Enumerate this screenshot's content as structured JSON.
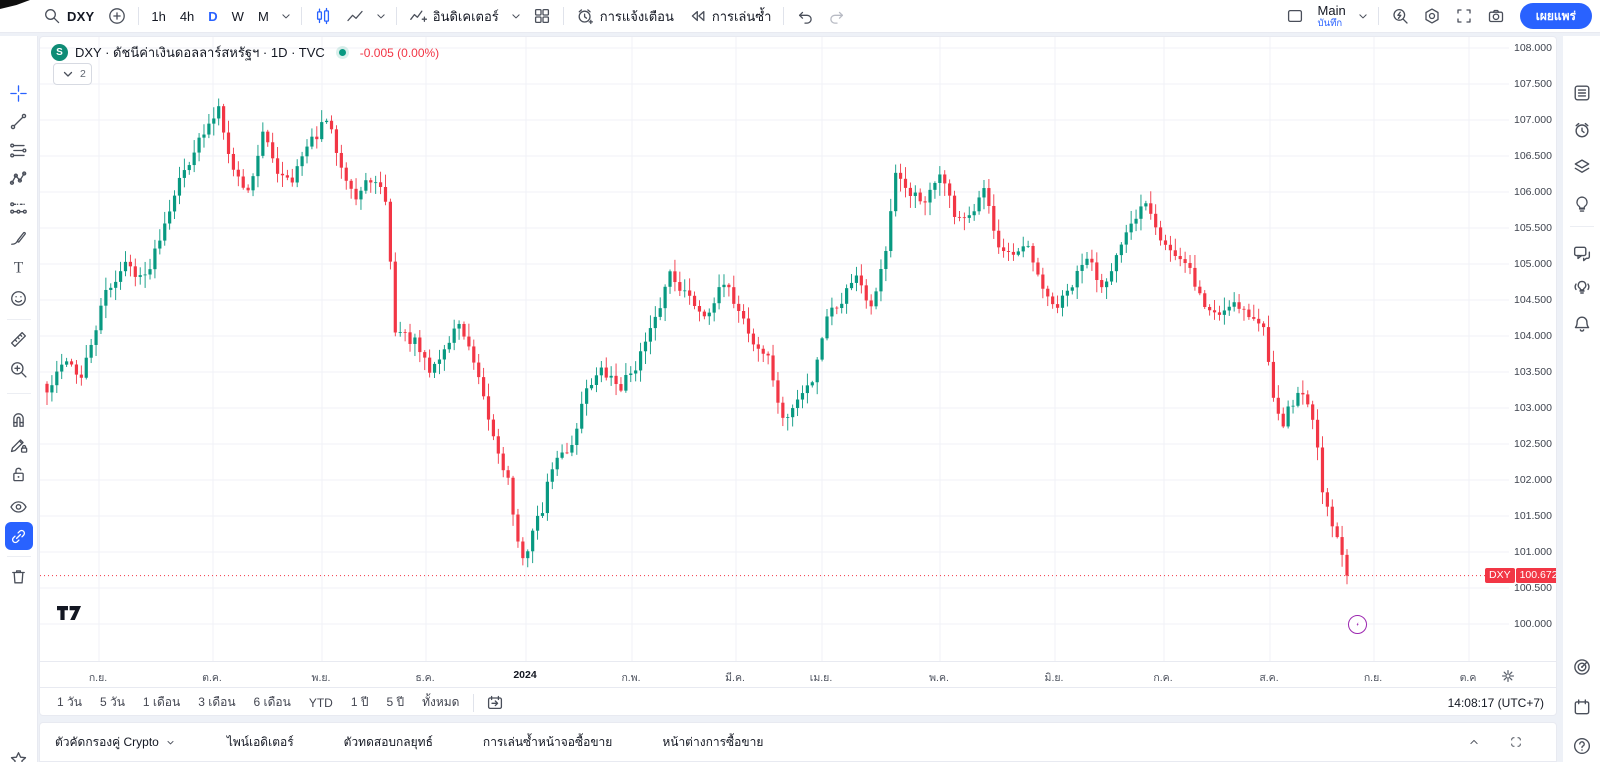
{
  "colors": {
    "accent": "#2962FF",
    "up": "#089981",
    "down": "#F23645",
    "text": "#131722",
    "muted": "#787b86",
    "grid": "#f0f2f7"
  },
  "topbar": {
    "symbol_search": "DXY",
    "timeframes": [
      "1h",
      "4h",
      "D",
      "W",
      "M"
    ],
    "active_timeframe": "D",
    "indicators_label": "อินดิเคเตอร์",
    "alerts_label": "การแจ้งเตือน",
    "replay_label": "การเล่นซ้ำ",
    "layout_name": "Main",
    "save_label": "บันทึก",
    "publish_label": "เผยแพร่"
  },
  "legend": {
    "source_badge": "S",
    "symbol_title": "DXY · ดัชนีค่าเงินดอลลาร์สหรัฐฯ · 1D · TVC",
    "change": "-0.005 (0.00%)",
    "collapsed_count": "2"
  },
  "left_toolbar": {
    "tools": [
      "crosshair",
      "trend-line",
      "fib-retracement",
      "xabcd-pattern",
      "forecast",
      "brush",
      "text",
      "emoji",
      "ruler",
      "zoom-in",
      "magnet",
      "edit-lock",
      "lock-all",
      "hide-all",
      "sync-drawings",
      "remove-all",
      "favorites-star"
    ],
    "active_tool": "sync-drawings",
    "crosshair_color": "#2962FF"
  },
  "right_toolbar": {
    "items": [
      "watchlist",
      "alert-clock",
      "layers",
      "ideas",
      "chat",
      "live-ideas",
      "notifications",
      "target",
      "calendar",
      "help"
    ]
  },
  "price_scale": {
    "ticks": [
      {
        "label": "108.000",
        "price": 108.0
      },
      {
        "label": "107.500",
        "price": 107.5
      },
      {
        "label": "107.000",
        "price": 107.0
      },
      {
        "label": "106.500",
        "price": 106.5
      },
      {
        "label": "106.000",
        "price": 106.0
      },
      {
        "label": "105.500",
        "price": 105.5
      },
      {
        "label": "105.000",
        "price": 105.0
      },
      {
        "label": "104.500",
        "price": 104.5
      },
      {
        "label": "104.000",
        "price": 104.0
      },
      {
        "label": "103.500",
        "price": 103.5
      },
      {
        "label": "103.000",
        "price": 103.0
      },
      {
        "label": "102.500",
        "price": 102.5
      },
      {
        "label": "102.000",
        "price": 102.0
      },
      {
        "label": "101.500",
        "price": 101.5
      },
      {
        "label": "101.000",
        "price": 101.0
      },
      {
        "label": "100.500",
        "price": 100.5
      },
      {
        "label": "100.000",
        "price": 100.0
      }
    ],
    "last": {
      "symbol": "DXY",
      "value": "100.672"
    }
  },
  "time_axis": {
    "labels": [
      {
        "text": "ก.ย.",
        "x": 97
      },
      {
        "text": "ต.ค.",
        "x": 211
      },
      {
        "text": "พ.ย.",
        "x": 320
      },
      {
        "text": "ธ.ค.",
        "x": 424
      },
      {
        "text": "2024",
        "x": 524,
        "bold": true
      },
      {
        "text": "ก.พ.",
        "x": 630
      },
      {
        "text": "มี.ค.",
        "x": 734
      },
      {
        "text": "เม.ย.",
        "x": 820
      },
      {
        "text": "พ.ค.",
        "x": 938
      },
      {
        "text": "มิ.ย.",
        "x": 1053
      },
      {
        "text": "ก.ค.",
        "x": 1162
      },
      {
        "text": "ส.ค.",
        "x": 1268
      },
      {
        "text": "ก.ย.",
        "x": 1372
      },
      {
        "text": "ต.ค",
        "x": 1467
      }
    ]
  },
  "bottom_toolbar": {
    "ranges": [
      "1 วัน",
      "5 วัน",
      "1 เดือน",
      "3 เดือน",
      "6 เดือน",
      "YTD",
      "1 ปี",
      "5 ปี",
      "ทั้งหมด"
    ],
    "clock": "14:08:17 (UTC+7)"
  },
  "bottom_tabs": {
    "tabs": [
      {
        "label": "ตัวคัดกรองคู่ Crypto",
        "chevron": true
      },
      {
        "label": "ไพน์เอดิเตอร์"
      },
      {
        "label": "ตัวทดสอบกลยุทธ์"
      },
      {
        "label": "การเล่นซ้ำหน้าจอซื้อขาย"
      },
      {
        "label": "หน้าต่างการซื้อขาย"
      }
    ]
  },
  "chart_data": {
    "type": "candlestick",
    "symbol": "DXY",
    "description": "ดัชนีค่าเงินดอลลาร์สหรัฐฯ",
    "exchange": "TVC",
    "timeframe": "1D",
    "title": "DXY · ดัชนีค่าเงินดอลลาร์สหรัฐฯ · 1D · TVC",
    "grid": true,
    "ylim": [
      99.5,
      108.15
    ],
    "price_tick_step": 0.5,
    "x_months": [
      "ก.ย.",
      "ต.ค.",
      "พ.ย.",
      "ธ.ค.",
      "2024",
      "ก.พ.",
      "มี.ค.",
      "เม.ย.",
      "พ.ค.",
      "มิ.ย.",
      "ก.ค.",
      "ส.ค.",
      "ก.ย.",
      "ต.ค"
    ],
    "up_color": "#089981",
    "down_color": "#F23645",
    "last_price": 100.672,
    "change": "-0.005",
    "change_pct": "0.00%",
    "close_keypoints": [
      [
        0,
        103.2
      ],
      [
        4,
        103.7
      ],
      [
        7,
        103.4
      ],
      [
        12,
        104.6
      ],
      [
        16,
        105.0
      ],
      [
        20,
        104.8
      ],
      [
        26,
        106.0
      ],
      [
        30,
        106.6
      ],
      [
        33,
        106.9
      ],
      [
        35,
        107.2
      ],
      [
        38,
        106.3
      ],
      [
        41,
        106.0
      ],
      [
        44,
        106.8
      ],
      [
        47,
        106.3
      ],
      [
        50,
        106.2
      ],
      [
        53,
        106.6
      ],
      [
        57,
        107.0
      ],
      [
        60,
        106.4
      ],
      [
        63,
        105.9
      ],
      [
        66,
        106.2
      ],
      [
        69,
        105.9
      ],
      [
        71,
        104.1
      ],
      [
        75,
        103.9
      ],
      [
        78,
        103.5
      ],
      [
        81,
        103.8
      ],
      [
        84,
        104.2
      ],
      [
        87,
        103.6
      ],
      [
        91,
        102.6
      ],
      [
        94,
        102.0
      ],
      [
        96,
        101.1
      ],
      [
        97,
        100.85
      ],
      [
        99,
        101.3
      ],
      [
        101,
        101.6
      ],
      [
        103,
        102.2
      ],
      [
        107,
        102.5
      ],
      [
        110,
        103.3
      ],
      [
        113,
        103.5
      ],
      [
        117,
        103.3
      ],
      [
        120,
        103.6
      ],
      [
        124,
        104.2
      ],
      [
        127,
        104.9
      ],
      [
        130,
        104.6
      ],
      [
        134,
        104.3
      ],
      [
        138,
        104.7
      ],
      [
        141,
        104.4
      ],
      [
        144,
        103.9
      ],
      [
        147,
        103.7
      ],
      [
        150,
        102.8
      ],
      [
        153,
        103.1
      ],
      [
        156,
        103.4
      ],
      [
        159,
        104.3
      ],
      [
        162,
        104.5
      ],
      [
        165,
        104.9
      ],
      [
        168,
        104.4
      ],
      [
        171,
        105.2
      ],
      [
        173,
        106.2
      ],
      [
        176,
        106.0
      ],
      [
        179,
        105.8
      ],
      [
        182,
        106.3
      ],
      [
        185,
        105.7
      ],
      [
        188,
        105.6
      ],
      [
        191,
        106.0
      ],
      [
        194,
        105.3
      ],
      [
        197,
        105.1
      ],
      [
        200,
        105.2
      ],
      [
        203,
        104.6
      ],
      [
        206,
        104.4
      ],
      [
        209,
        104.7
      ],
      [
        212,
        105.1
      ],
      [
        215,
        104.7
      ],
      [
        218,
        105.1
      ],
      [
        221,
        105.5
      ],
      [
        224,
        105.9
      ],
      [
        227,
        105.4
      ],
      [
        230,
        105.1
      ],
      [
        233,
        104.9
      ],
      [
        236,
        104.4
      ],
      [
        239,
        104.3
      ],
      [
        242,
        104.5
      ],
      [
        245,
        104.3
      ],
      [
        248,
        104.1
      ],
      [
        250,
        103.2
      ],
      [
        252,
        102.8
      ],
      [
        254,
        103.1
      ],
      [
        256,
        103.2
      ],
      [
        258,
        102.9
      ],
      [
        260,
        101.9
      ],
      [
        262,
        101.4
      ],
      [
        264,
        100.95
      ],
      [
        265,
        100.672
      ]
    ]
  }
}
